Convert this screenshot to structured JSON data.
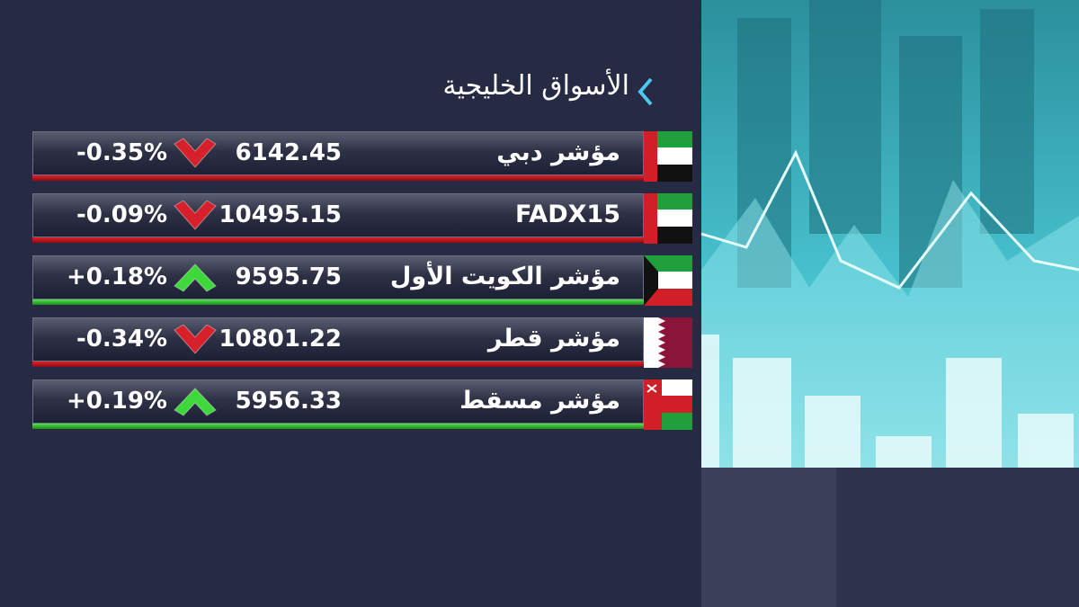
{
  "header": {
    "title": "الأسواق الخليجية"
  },
  "rows": [
    {
      "name": "مؤشر دبي",
      "value": "6142.45",
      "change": "-0.35%",
      "trend": "down"
    },
    {
      "name": "FADX15",
      "value": "10495.15",
      "change": "-0.09%",
      "trend": "down"
    },
    {
      "name": "مؤشر الكويت الأول",
      "value": "9595.75",
      "change": "+0.18%",
      "trend": "up"
    },
    {
      "name": "مؤشر قطر",
      "value": "10801.22",
      "change": "-0.34%",
      "trend": "down"
    },
    {
      "name": "مؤشر مسقط",
      "value": "5956.33",
      "change": "+0.19%",
      "trend": "up"
    }
  ]
}
